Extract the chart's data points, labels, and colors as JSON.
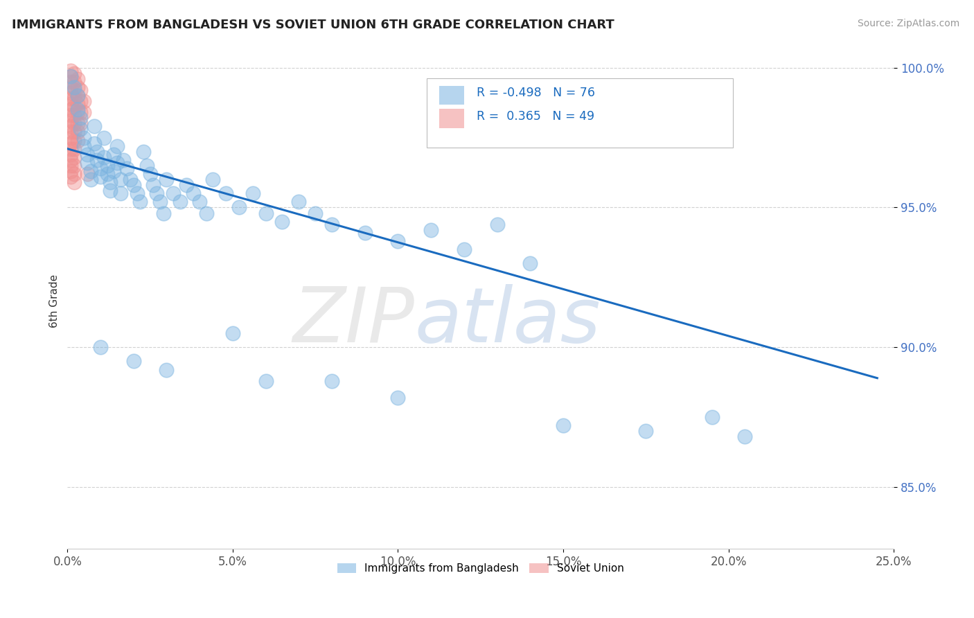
{
  "title": "IMMIGRANTS FROM BANGLADESH VS SOVIET UNION 6TH GRADE CORRELATION CHART",
  "source": "Source: ZipAtlas.com",
  "xlabel_bottom": "Immigrants from Bangladesh",
  "xlabel_bottom2": "Soviet Union",
  "ylabel": "6th Grade",
  "xlim": [
    0.0,
    0.25
  ],
  "ylim": [
    0.828,
    1.005
  ],
  "xticks": [
    0.0,
    0.05,
    0.1,
    0.15,
    0.2,
    0.25
  ],
  "xtick_labels": [
    "0.0%",
    "5.0%",
    "10.0%",
    "15.0%",
    "20.0%",
    "25.0%"
  ],
  "yticks": [
    0.85,
    0.9,
    0.95,
    1.0
  ],
  "ytick_labels": [
    "85.0%",
    "90.0%",
    "95.0%",
    "100.0%"
  ],
  "legend_r_bangladesh": "-0.498",
  "legend_n_bangladesh": "76",
  "legend_r_soviet": "0.365",
  "legend_n_soviet": "49",
  "blue_color": "#7ab3e0",
  "pink_color": "#f09090",
  "line_color": "#1a6bbf",
  "blue_scatter": [
    [
      0.001,
      0.997
    ],
    [
      0.002,
      0.993
    ],
    [
      0.003,
      0.99
    ],
    [
      0.003,
      0.985
    ],
    [
      0.004,
      0.982
    ],
    [
      0.004,
      0.978
    ],
    [
      0.005,
      0.975
    ],
    [
      0.005,
      0.972
    ],
    [
      0.006,
      0.969
    ],
    [
      0.006,
      0.966
    ],
    [
      0.007,
      0.963
    ],
    [
      0.007,
      0.96
    ],
    [
      0.008,
      0.979
    ],
    [
      0.008,
      0.973
    ],
    [
      0.009,
      0.97
    ],
    [
      0.009,
      0.967
    ],
    [
      0.01,
      0.964
    ],
    [
      0.01,
      0.961
    ],
    [
      0.011,
      0.975
    ],
    [
      0.011,
      0.968
    ],
    [
      0.012,
      0.965
    ],
    [
      0.012,
      0.962
    ],
    [
      0.013,
      0.959
    ],
    [
      0.013,
      0.956
    ],
    [
      0.014,
      0.969
    ],
    [
      0.014,
      0.963
    ],
    [
      0.015,
      0.972
    ],
    [
      0.015,
      0.966
    ],
    [
      0.016,
      0.96
    ],
    [
      0.016,
      0.955
    ],
    [
      0.017,
      0.967
    ],
    [
      0.018,
      0.964
    ],
    [
      0.019,
      0.96
    ],
    [
      0.02,
      0.958
    ],
    [
      0.021,
      0.955
    ],
    [
      0.022,
      0.952
    ],
    [
      0.023,
      0.97
    ],
    [
      0.024,
      0.965
    ],
    [
      0.025,
      0.962
    ],
    [
      0.026,
      0.958
    ],
    [
      0.027,
      0.955
    ],
    [
      0.028,
      0.952
    ],
    [
      0.029,
      0.948
    ],
    [
      0.03,
      0.96
    ],
    [
      0.032,
      0.955
    ],
    [
      0.034,
      0.952
    ],
    [
      0.036,
      0.958
    ],
    [
      0.038,
      0.955
    ],
    [
      0.04,
      0.952
    ],
    [
      0.042,
      0.948
    ],
    [
      0.044,
      0.96
    ],
    [
      0.048,
      0.955
    ],
    [
      0.052,
      0.95
    ],
    [
      0.056,
      0.955
    ],
    [
      0.06,
      0.948
    ],
    [
      0.065,
      0.945
    ],
    [
      0.07,
      0.952
    ],
    [
      0.075,
      0.948
    ],
    [
      0.08,
      0.944
    ],
    [
      0.09,
      0.941
    ],
    [
      0.1,
      0.938
    ],
    [
      0.11,
      0.942
    ],
    [
      0.12,
      0.935
    ],
    [
      0.13,
      0.944
    ],
    [
      0.14,
      0.93
    ],
    [
      0.01,
      0.9
    ],
    [
      0.02,
      0.895
    ],
    [
      0.03,
      0.892
    ],
    [
      0.05,
      0.905
    ],
    [
      0.06,
      0.888
    ],
    [
      0.08,
      0.888
    ],
    [
      0.1,
      0.882
    ],
    [
      0.15,
      0.872
    ],
    [
      0.175,
      0.87
    ],
    [
      0.195,
      0.875
    ],
    [
      0.205,
      0.868
    ]
  ],
  "pink_scatter": [
    [
      0.001,
      0.999
    ],
    [
      0.001,
      0.997
    ],
    [
      0.001,
      0.995
    ],
    [
      0.001,
      0.993
    ],
    [
      0.001,
      0.991
    ],
    [
      0.001,
      0.989
    ],
    [
      0.001,
      0.987
    ],
    [
      0.001,
      0.985
    ],
    [
      0.001,
      0.983
    ],
    [
      0.001,
      0.981
    ],
    [
      0.001,
      0.979
    ],
    [
      0.001,
      0.977
    ],
    [
      0.001,
      0.975
    ],
    [
      0.001,
      0.973
    ],
    [
      0.001,
      0.971
    ],
    [
      0.001,
      0.969
    ],
    [
      0.001,
      0.967
    ],
    [
      0.001,
      0.965
    ],
    [
      0.001,
      0.963
    ],
    [
      0.001,
      0.961
    ],
    [
      0.002,
      0.998
    ],
    [
      0.002,
      0.995
    ],
    [
      0.002,
      0.992
    ],
    [
      0.002,
      0.989
    ],
    [
      0.002,
      0.986
    ],
    [
      0.002,
      0.983
    ],
    [
      0.002,
      0.98
    ],
    [
      0.002,
      0.977
    ],
    [
      0.002,
      0.974
    ],
    [
      0.002,
      0.971
    ],
    [
      0.002,
      0.968
    ],
    [
      0.002,
      0.965
    ],
    [
      0.002,
      0.962
    ],
    [
      0.002,
      0.959
    ],
    [
      0.003,
      0.996
    ],
    [
      0.003,
      0.993
    ],
    [
      0.003,
      0.99
    ],
    [
      0.003,
      0.987
    ],
    [
      0.003,
      0.984
    ],
    [
      0.003,
      0.98
    ],
    [
      0.003,
      0.977
    ],
    [
      0.003,
      0.974
    ],
    [
      0.004,
      0.992
    ],
    [
      0.004,
      0.988
    ],
    [
      0.004,
      0.984
    ],
    [
      0.004,
      0.98
    ],
    [
      0.005,
      0.988
    ],
    [
      0.005,
      0.984
    ],
    [
      0.006,
      0.962
    ]
  ],
  "trendline_x": [
    0.0,
    0.245
  ],
  "trendline_y": [
    0.971,
    0.889
  ]
}
